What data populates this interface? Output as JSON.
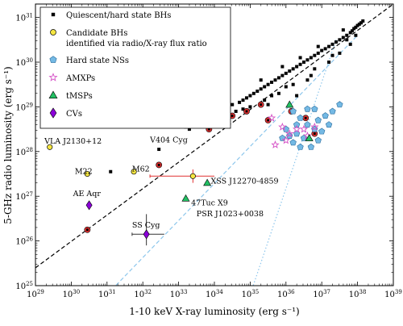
{
  "chart_data": {
    "type": "scatter",
    "title": "",
    "xlabel": "1-10 keV X-ray luminosity (erg s⁻¹)",
    "ylabel": "5-GHz radio luminosity (erg s⁻¹)",
    "xscale": "log",
    "yscale": "log",
    "xlim_log10": [
      29,
      39
    ],
    "ylim_log10": [
      25,
      31.3
    ],
    "x_tick_labels": [
      "10^29",
      "10^30",
      "10^31",
      "10^32",
      "10^33",
      "10^34",
      "10^35",
      "10^36",
      "10^37",
      "10^38",
      "10^39"
    ],
    "y_tick_labels": [
      "10^25",
      "10^26",
      "10^27",
      "10^28",
      "10^29",
      "10^30",
      "10^31"
    ],
    "grid": false,
    "legend_position": "top-left",
    "legend": [
      {
        "key": "bh",
        "label": "Quiescent/hard state BHs",
        "marker": "square",
        "color": "#000000"
      },
      {
        "key": "cand",
        "label1": "Candidate BHs",
        "label2": "identified via radio/X-ray flux ratio",
        "marker": "circle",
        "color": "#f5e642"
      },
      {
        "key": "ns",
        "label": "Hard state NSs",
        "marker": "pentagon",
        "color": "#74b9e4"
      },
      {
        "key": "amxp",
        "label": "AMXPs",
        "marker": "star",
        "color": "#d54fc6"
      },
      {
        "key": "tmsp",
        "label": "tMSPs",
        "marker": "triangle",
        "color": "#22c063"
      },
      {
        "key": "cv",
        "label": "CVs",
        "marker": "diamond",
        "color": "#8b00d8"
      }
    ],
    "trend_lines": [
      {
        "style": "dashed",
        "color": "#000000",
        "points_log10": [
          [
            29,
            25.4
          ],
          [
            39,
            31.3
          ]
        ]
      },
      {
        "style": "dashed",
        "color": "#8cc6ec",
        "points_log10": [
          [
            31.0,
            24.8
          ],
          [
            38.0,
            30.6
          ]
        ]
      },
      {
        "style": "dotted",
        "color": "#8cc6ec",
        "points_log10": [
          [
            35.0,
            24.8
          ],
          [
            37.4,
            30.5
          ]
        ]
      }
    ],
    "annotations": [
      {
        "text": "VLA J2130+12",
        "x_log10": 29.25,
        "y_log10": 28.18
      },
      {
        "text": "V404 Cyg",
        "x_log10": 32.2,
        "y_log10": 28.2
      },
      {
        "text": "M22",
        "x_log10": 30.1,
        "y_log10": 27.5
      },
      {
        "text": "M62",
        "x_log10": 31.7,
        "y_log10": 27.55
      },
      {
        "text": "XSS J12270-4859",
        "x_log10": 33.9,
        "y_log10": 27.28
      },
      {
        "text": "47Tuc X9",
        "x_log10": 33.35,
        "y_log10": 26.8
      },
      {
        "text": "AE Aqr",
        "x_log10": 30.05,
        "y_log10": 27.0
      },
      {
        "text": "PSR J1023+0038",
        "x_log10": 33.5,
        "y_log10": 26.55
      },
      {
        "text": "SS Cyg",
        "x_log10": 31.7,
        "y_log10": 26.3
      }
    ],
    "series": [
      {
        "key": "bh",
        "points": [
          [
            38.15,
            30.92
          ],
          [
            38.1,
            30.88
          ],
          [
            38.05,
            30.85
          ],
          [
            38.0,
            30.82
          ],
          [
            37.95,
            30.78
          ],
          [
            37.9,
            30.75
          ],
          [
            37.85,
            30.7
          ],
          [
            37.8,
            30.66
          ],
          [
            37.7,
            30.6
          ],
          [
            37.6,
            30.55
          ],
          [
            37.5,
            30.5
          ],
          [
            37.4,
            30.45
          ],
          [
            37.3,
            30.4
          ],
          [
            37.2,
            30.35
          ],
          [
            37.1,
            30.3
          ],
          [
            37.0,
            30.26
          ],
          [
            36.9,
            30.2
          ],
          [
            36.8,
            30.15
          ],
          [
            36.7,
            30.1
          ],
          [
            36.6,
            30.05
          ],
          [
            36.5,
            30.0
          ],
          [
            36.4,
            29.95
          ],
          [
            36.3,
            29.9
          ],
          [
            36.2,
            29.85
          ],
          [
            36.1,
            29.8
          ],
          [
            36.0,
            29.75
          ],
          [
            35.9,
            29.7
          ],
          [
            35.8,
            29.65
          ],
          [
            35.7,
            29.6
          ],
          [
            35.6,
            29.55
          ],
          [
            35.5,
            29.5
          ],
          [
            35.4,
            29.45
          ],
          [
            35.3,
            29.4
          ],
          [
            35.2,
            29.35
          ],
          [
            35.1,
            29.3
          ],
          [
            35.0,
            29.25
          ],
          [
            34.9,
            29.2
          ],
          [
            34.8,
            29.15
          ],
          [
            34.7,
            29.1
          ],
          [
            34.5,
            29.05
          ],
          [
            34.3,
            28.95
          ],
          [
            34.1,
            28.85
          ],
          [
            33.9,
            28.78
          ],
          [
            33.7,
            28.7
          ],
          [
            33.5,
            28.6
          ],
          [
            33.3,
            28.5
          ],
          [
            37.5,
            30.2
          ],
          [
            37.2,
            30.0
          ],
          [
            36.8,
            29.85
          ],
          [
            36.6,
            29.6
          ],
          [
            36.2,
            29.5
          ],
          [
            35.8,
            29.3
          ],
          [
            35.4,
            29.15
          ],
          [
            35.0,
            29.0
          ],
          [
            34.6,
            28.9
          ],
          [
            37.8,
            30.4
          ],
          [
            37.3,
            30.15
          ],
          [
            36.0,
            29.45
          ],
          [
            35.6,
            29.25
          ],
          [
            34.8,
            28.95
          ],
          [
            34.2,
            28.75
          ],
          [
            33.2,
            28.55
          ],
          [
            37.6,
            30.72
          ],
          [
            36.9,
            30.35
          ],
          [
            36.4,
            30.1
          ],
          [
            35.9,
            29.9
          ],
          [
            35.3,
            29.6
          ],
          [
            34.4,
            29.2
          ],
          [
            36.7,
            29.7
          ],
          [
            36.3,
            29.25
          ],
          [
            35.5,
            29.05
          ],
          [
            37.7,
            30.5
          ],
          [
            37.95,
            30.6
          ],
          [
            32.45,
            28.05
          ],
          [
            31.1,
            27.55
          ]
        ]
      },
      {
        "key": "cand",
        "points": [
          [
            30.45,
            27.5
          ],
          [
            31.75,
            27.55
          ],
          [
            33.4,
            27.45
          ],
          [
            29.4,
            28.1
          ]
        ]
      },
      {
        "key": "cand_redring",
        "points": [
          [
            34.2,
            28.7
          ],
          [
            34.5,
            28.8
          ],
          [
            34.9,
            28.9
          ],
          [
            35.3,
            29.05
          ],
          [
            36.15,
            28.9
          ],
          [
            36.55,
            28.75
          ],
          [
            36.8,
            28.4
          ],
          [
            33.7,
            28.65
          ],
          [
            33.85,
            28.5
          ],
          [
            32.45,
            27.7
          ],
          [
            30.45,
            26.25
          ],
          [
            35.5,
            28.7
          ]
        ]
      },
      {
        "key": "ns",
        "points": [
          [
            36.2,
            28.9
          ],
          [
            36.4,
            28.75
          ],
          [
            36.6,
            28.6
          ],
          [
            36.8,
            28.5
          ],
          [
            37.0,
            28.45
          ],
          [
            37.2,
            28.6
          ],
          [
            36.3,
            28.4
          ],
          [
            36.5,
            28.3
          ],
          [
            36.9,
            28.7
          ],
          [
            37.1,
            28.8
          ],
          [
            36.0,
            28.5
          ],
          [
            36.2,
            28.2
          ],
          [
            36.7,
            28.1
          ],
          [
            36.1,
            28.35
          ],
          [
            36.4,
            28.1
          ],
          [
            36.9,
            28.25
          ],
          [
            37.3,
            28.9
          ],
          [
            37.5,
            29.05
          ],
          [
            36.6,
            28.95
          ],
          [
            36.8,
            28.95
          ],
          [
            36.3,
            28.6
          ],
          [
            35.9,
            28.3
          ]
        ]
      },
      {
        "key": "amxp",
        "points": [
          [
            35.6,
            28.75
          ],
          [
            35.9,
            28.55
          ],
          [
            36.1,
            28.4
          ],
          [
            36.3,
            28.5
          ],
          [
            36.5,
            28.5
          ],
          [
            36.8,
            28.55
          ],
          [
            35.7,
            28.15
          ],
          [
            36.0,
            28.25
          ],
          [
            36.6,
            28.35
          ]
        ]
      },
      {
        "key": "tmsp",
        "points": [
          [
            36.1,
            29.05
          ],
          [
            33.8,
            27.3
          ],
          [
            33.2,
            26.95
          ],
          [
            36.65,
            28.3
          ]
        ]
      },
      {
        "key": "cv",
        "points": [
          [
            30.5,
            26.8
          ],
          [
            32.1,
            26.15
          ]
        ]
      }
    ],
    "error_bars": [
      {
        "cx": 33.4,
        "cy": 27.45,
        "x": [
          32.2,
          34.0
        ],
        "y": [
          27.3,
          27.6
        ],
        "color": "#e03030"
      },
      {
        "cx": 32.1,
        "cy": 26.15,
        "x": [
          31.7,
          32.6
        ],
        "y": [
          25.9,
          26.6
        ],
        "color": "#333333"
      }
    ]
  }
}
